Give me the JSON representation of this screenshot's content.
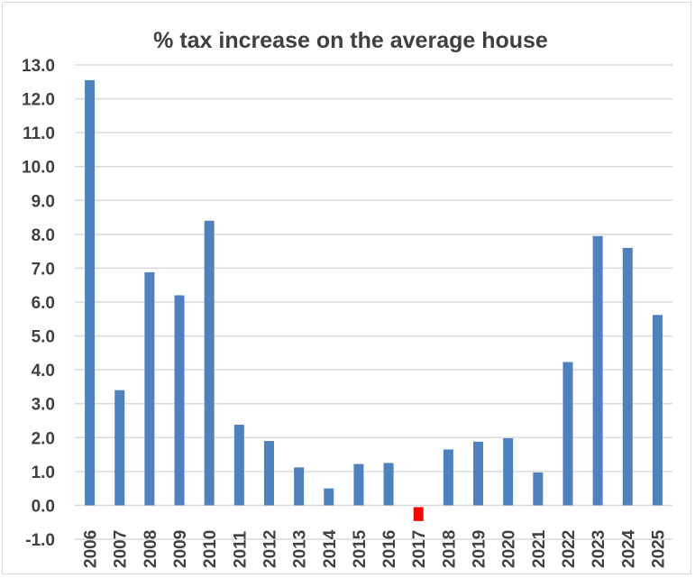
{
  "chart_data": {
    "type": "bar",
    "title": "% tax increase on the average house",
    "xlabel": "",
    "ylabel": "",
    "ylim": [
      -1.0,
      13.0
    ],
    "ytick_step": 1.0,
    "grid": true,
    "legend": "none",
    "categories": [
      "2006",
      "2007",
      "2008",
      "2009",
      "2010",
      "2011",
      "2012",
      "2013",
      "2014",
      "2015",
      "2016",
      "2017",
      "2018",
      "2019",
      "2020",
      "2021",
      "2022",
      "2023",
      "2024",
      "2025"
    ],
    "values": [
      12.55,
      3.4,
      6.88,
      6.2,
      8.4,
      2.38,
      1.9,
      1.12,
      0.5,
      1.22,
      1.25,
      -0.25,
      1.65,
      1.88,
      1.98,
      0.97,
      4.23,
      7.95,
      7.6,
      5.62
    ],
    "colors": {
      "bar": "#4f81bd",
      "negative_bar": "#ff0000",
      "grid": "#d9d9d9",
      "text": "#404040"
    }
  }
}
